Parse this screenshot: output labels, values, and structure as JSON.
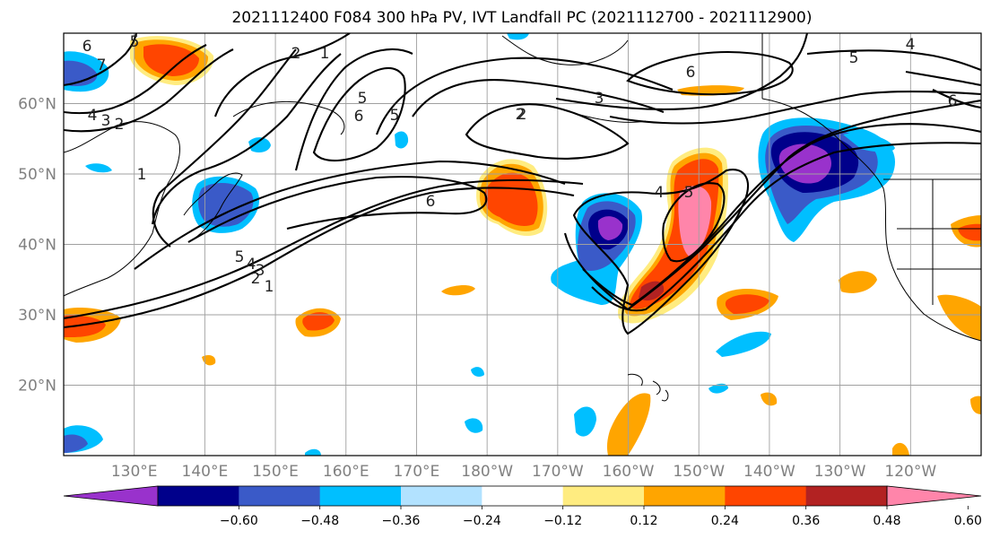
{
  "title": "2021112400 F084 300 hPa PV, IVT Landfall PC (2021112700 - 2021112900)",
  "map": {
    "lat_labels": [
      "60°N",
      "50°N",
      "40°N",
      "30°N",
      "20°N"
    ],
    "lon_labels": [
      "130°E",
      "140°E",
      "150°E",
      "160°E",
      "170°E",
      "180°W",
      "170°W",
      "160°W",
      "150°W",
      "140°W",
      "130°W",
      "120°W"
    ],
    "lat_range": [
      10,
      70
    ],
    "lon_range": [
      120,
      250
    ]
  },
  "pv_contour_labels": [
    "6",
    "7",
    "5",
    "4",
    "3",
    "2",
    "1",
    "2",
    "1",
    "5",
    "6",
    "5",
    "3",
    "2",
    "6",
    "5",
    "4",
    "3",
    "2",
    "1",
    "2",
    "4",
    "5",
    "6",
    "5",
    "4",
    "6"
  ],
  "colorbar": {
    "ticks": [
      "−0.60",
      "−0.48",
      "−0.36",
      "−0.24",
      "−0.12",
      "0.12",
      "0.24",
      "0.36",
      "0.48",
      "0.60"
    ],
    "colors": [
      "#9932CC",
      "#00008B",
      "#3A5AC8",
      "#00BFFF",
      "#B2E2FF",
      "#FFFFFF",
      "#FFEC80",
      "#FFA500",
      "#FF4500",
      "#B22222",
      "#FF85AA"
    ]
  }
}
